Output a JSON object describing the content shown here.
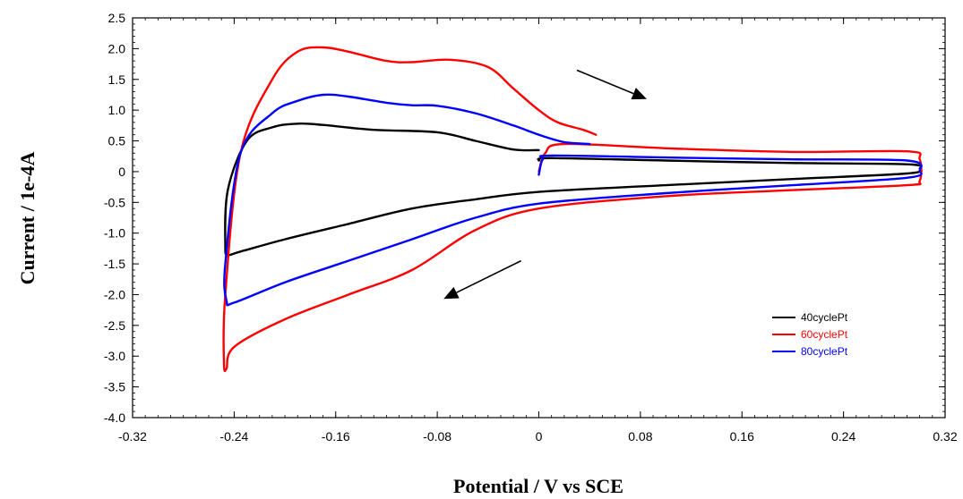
{
  "chart_data": {
    "type": "line",
    "title": "",
    "xlabel": "Potential / V vs SCE",
    "ylabel": "Current / 1e-4A",
    "xlim": [
      -0.32,
      0.32
    ],
    "ylim": [
      -4.0,
      2.5
    ],
    "x_ticks": [
      -0.32,
      -0.24,
      -0.16,
      -0.08,
      0,
      0.08,
      0.16,
      0.24,
      0.32
    ],
    "x_tick_labels": [
      "-0.32",
      "-0.24",
      "-0.16",
      "-0.08",
      "0",
      "0.08",
      "0.16",
      "0.24",
      "0.32"
    ],
    "y_ticks": [
      2.5,
      2.0,
      1.5,
      1.0,
      0.5,
      0,
      -0.5,
      -1.0,
      -1.5,
      -2.0,
      -2.5,
      -3.0,
      -3.5,
      -4.0
    ],
    "y_tick_labels": [
      "2.5",
      "2.0",
      "1.5",
      "1.0",
      "0.5",
      "0",
      "-0.5",
      "-1.0",
      "-1.5",
      "-2.0",
      "-2.5",
      "-3.0",
      "-3.5",
      "-4.0"
    ],
    "grid": false,
    "legend_position": "lower-right",
    "series": [
      {
        "name": "40cyclePt",
        "color": "#000000",
        "x": [
          0.0,
          0.01,
          0.1,
          0.2,
          0.29,
          0.3,
          0.29,
          0.2,
          0.1,
          0.0,
          -0.05,
          -0.1,
          -0.15,
          -0.2,
          -0.235,
          -0.245,
          -0.247,
          -0.245,
          -0.23,
          -0.21,
          -0.19,
          -0.17,
          -0.13,
          -0.08,
          -0.05,
          -0.02,
          0.0
        ],
        "y": [
          0.18,
          0.22,
          0.18,
          0.14,
          0.12,
          0.05,
          -0.03,
          -0.12,
          -0.22,
          -0.33,
          -0.45,
          -0.6,
          -0.85,
          -1.1,
          -1.3,
          -1.35,
          -1.2,
          -0.3,
          0.5,
          0.72,
          0.78,
          0.76,
          0.68,
          0.64,
          0.5,
          0.36,
          0.35
        ]
      },
      {
        "name": "60cyclePt",
        "color": "#ff0000",
        "x": [
          0.0,
          0.005,
          0.02,
          0.1,
          0.2,
          0.29,
          0.3,
          0.3,
          0.29,
          0.2,
          0.1,
          0.0,
          -0.05,
          -0.1,
          -0.15,
          -0.2,
          -0.24,
          -0.246,
          -0.248,
          -0.247,
          -0.235,
          -0.21,
          -0.19,
          -0.17,
          -0.15,
          -0.12,
          -0.1,
          -0.07,
          -0.04,
          -0.02,
          0.0,
          0.015,
          0.035,
          0.045
        ],
        "y": [
          0.0,
          0.3,
          0.45,
          0.38,
          0.32,
          0.33,
          0.2,
          -0.15,
          -0.22,
          -0.3,
          -0.4,
          -0.6,
          -0.95,
          -1.6,
          -2.0,
          -2.4,
          -2.85,
          -3.2,
          -3.1,
          -2.0,
          0.3,
          1.5,
          1.95,
          2.02,
          1.95,
          1.8,
          1.78,
          1.82,
          1.7,
          1.35,
          1.0,
          0.8,
          0.68,
          0.6
        ]
      },
      {
        "name": "80cyclePt",
        "color": "#0000ff",
        "x": [
          0.0,
          0.003,
          0.01,
          0.1,
          0.2,
          0.29,
          0.3,
          0.29,
          0.2,
          0.1,
          0.0,
          -0.05,
          -0.1,
          -0.15,
          -0.2,
          -0.24,
          -0.246,
          -0.247,
          -0.235,
          -0.21,
          -0.19,
          -0.17,
          -0.15,
          -0.12,
          -0.1,
          -0.08,
          -0.05,
          -0.02,
          0.0,
          0.02,
          0.04
        ],
        "y": [
          -0.05,
          0.2,
          0.26,
          0.23,
          0.2,
          0.18,
          0.02,
          -0.1,
          -0.22,
          -0.35,
          -0.52,
          -0.75,
          -1.1,
          -1.45,
          -1.8,
          -2.13,
          -2.1,
          -1.5,
          0.3,
          0.95,
          1.15,
          1.25,
          1.22,
          1.12,
          1.08,
          1.07,
          0.95,
          0.75,
          0.6,
          0.48,
          0.45
        ]
      }
    ],
    "annotations": [
      {
        "type": "arrow",
        "from": [
          0.03,
          1.65
        ],
        "to": [
          0.085,
          1.18
        ]
      },
      {
        "type": "arrow",
        "from": [
          -0.014,
          -1.45
        ],
        "to": [
          -0.075,
          -2.07
        ]
      }
    ]
  }
}
